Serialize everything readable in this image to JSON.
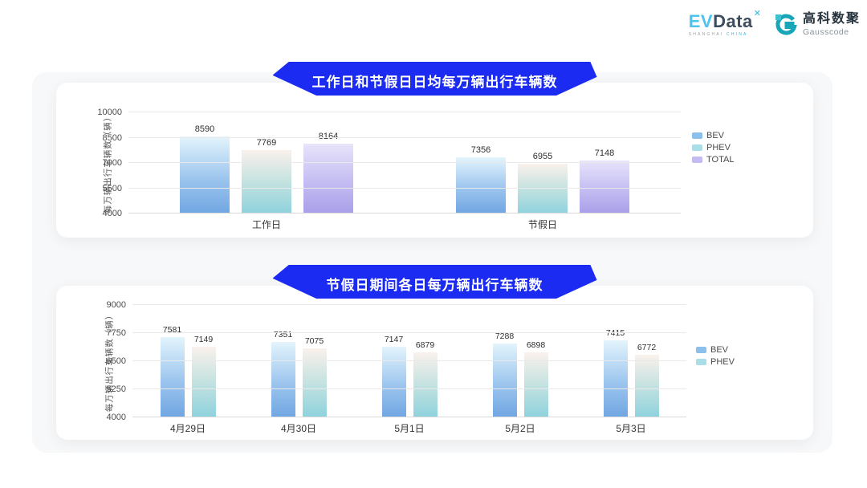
{
  "header": {
    "evdata": {
      "ev": "EV",
      "data": "Data",
      "mark": "✕",
      "subtitle_left": "SHANGHAI",
      "subtitle_right": "CHINA"
    },
    "gausscode": {
      "cn": "高科数聚",
      "en": "Gausscode"
    }
  },
  "colors": {
    "banner_blue": "#1b2bf2",
    "bev_gradient_top": "#e3f4fc",
    "bev_gradient_bottom": "#70a6e2",
    "phev_gradient_top": "#faf1ec",
    "phev_gradient_bottom": "#8ed2dd",
    "total_gradient_top": "#e7e4fa",
    "total_gradient_bottom": "#a89fe8",
    "legend_bev": "#8cc0ec",
    "legend_phev": "#aadee6",
    "legend_total": "#c3bcf2",
    "gausscode_teal": "#18a5b8",
    "evdata_blue": "#4fc3f0"
  },
  "chart_data": [
    {
      "type": "bar",
      "title": "工作日和节假日日均每万辆出行车辆数",
      "ylabel": "每万辆出行车辆数（辆）",
      "xlabel": "",
      "categories": [
        "工作日",
        "节假日"
      ],
      "series": [
        {
          "name": "BEV",
          "values": [
            8590,
            7356
          ]
        },
        {
          "name": "PHEV",
          "values": [
            7769,
            6955
          ]
        },
        {
          "name": "TOTAL",
          "values": [
            8164,
            7148
          ]
        }
      ],
      "ylim": [
        4000,
        10000
      ],
      "yticks": [
        4000,
        5500,
        7000,
        8500,
        10000
      ],
      "grid": true,
      "legend_position": "right"
    },
    {
      "type": "bar",
      "title": "节假日期间各日每万辆出行车辆数",
      "ylabel": "每万辆出行车辆数（辆）",
      "xlabel": "",
      "categories": [
        "4月29日",
        "4月30日",
        "5月1日",
        "5月2日",
        "5月3日"
      ],
      "series": [
        {
          "name": "BEV",
          "values": [
            7581,
            7351,
            7147,
            7288,
            7415
          ]
        },
        {
          "name": "PHEV",
          "values": [
            7149,
            7075,
            6879,
            6898,
            6772
          ]
        }
      ],
      "ylim": [
        4000,
        9000
      ],
      "yticks": [
        4000,
        5250,
        6500,
        7750,
        9000
      ],
      "grid": true,
      "legend_position": "right"
    }
  ]
}
